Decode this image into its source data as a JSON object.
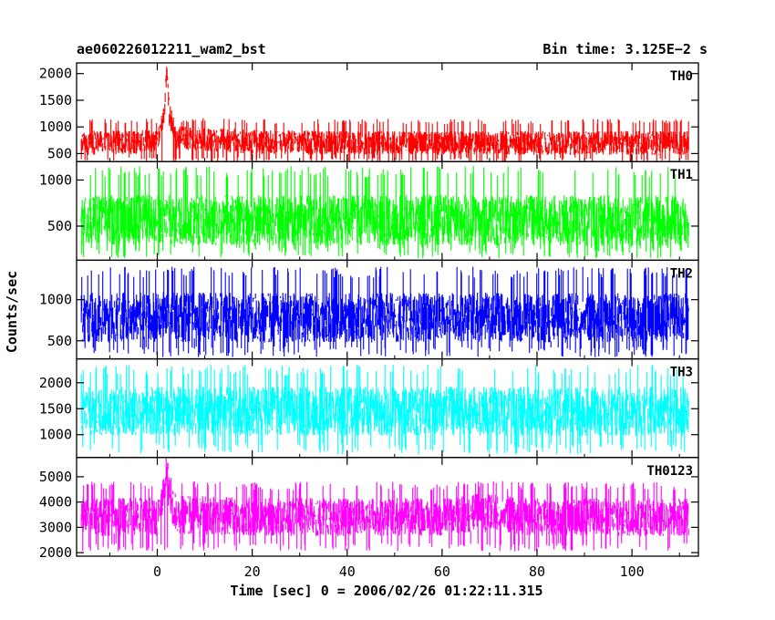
{
  "header": {
    "file_name": "ae060226012211_wam2_bst",
    "bin_time": "Bin time: 3.125E−2 s"
  },
  "axes": {
    "ylabel": "Counts/sec",
    "xlabel": "Time [sec] 0 = 2006/02/26 01:22:11.315"
  },
  "chart_data": {
    "type": "line",
    "title": "ae060226012211_wam2_bst",
    "subtitle": "Bin time: 3.125E−2 s",
    "xlabel": "Time [sec] 0 = 2006/02/26 01:22:11.315",
    "ylabel": "Counts/sec",
    "xlim": [
      -17,
      114
    ],
    "data_x_range": [
      -16,
      112
    ],
    "x_ticks": [
      0,
      20,
      40,
      60,
      80,
      100
    ],
    "grid": false,
    "panels": [
      {
        "name": "TH0",
        "color": "#ff0000",
        "ylim": [
          350,
          2200
        ],
        "y_ticks": [
          500,
          1000,
          1500,
          2000
        ],
        "baseline": 700,
        "band_low": 330,
        "band_high": 1150,
        "x": [
          -16,
          0,
          1.5,
          2.0,
          2.5,
          4,
          20,
          40,
          60,
          80,
          100,
          112
        ],
        "y": [
          700,
          720,
          1300,
          2200,
          1250,
          800,
          720,
          700,
          700,
          700,
          700,
          700
        ]
      },
      {
        "name": "TH1",
        "color": "#00ff00",
        "ylim": [
          130,
          1200
        ],
        "y_ticks": [
          500,
          1000
        ],
        "baseline": 560,
        "band_low": 150,
        "band_high": 1150,
        "x": [
          -16,
          0,
          20,
          40,
          60,
          80,
          100,
          112
        ],
        "y": [
          560,
          570,
          560,
          560,
          565,
          560,
          560,
          560
        ]
      },
      {
        "name": "TH2",
        "color": "#0000ff",
        "ylim": [
          280,
          1480
        ],
        "y_ticks": [
          500,
          1000
        ],
        "baseline": 780,
        "band_low": 300,
        "band_high": 1400,
        "x": [
          -16,
          0,
          20,
          40,
          60,
          80,
          100,
          112
        ],
        "y": [
          780,
          790,
          780,
          780,
          785,
          780,
          780,
          780
        ]
      },
      {
        "name": "TH3",
        "color": "#00ffff",
        "ylim": [
          560,
          2460
        ],
        "y_ticks": [
          1000,
          1500,
          2000
        ],
        "baseline": 1450,
        "band_low": 620,
        "band_high": 2350,
        "x": [
          -16,
          0,
          20,
          40,
          60,
          80,
          100,
          112
        ],
        "y": [
          1450,
          1460,
          1450,
          1450,
          1455,
          1450,
          1450,
          1450
        ]
      },
      {
        "name": "TH0123",
        "color": "#ff00ff",
        "ylim": [
          1860,
          5760
        ],
        "y_ticks": [
          2000,
          3000,
          4000,
          5000
        ],
        "baseline": 3400,
        "band_low": 2050,
        "band_high": 4800,
        "x": [
          -16,
          0,
          1.5,
          2.0,
          2.5,
          4,
          20,
          40,
          60,
          67,
          80,
          100,
          112
        ],
        "y": [
          3400,
          3420,
          4300,
          5500,
          4200,
          3500,
          3420,
          3400,
          3400,
          3600,
          3400,
          3400,
          3400
        ]
      }
    ]
  }
}
